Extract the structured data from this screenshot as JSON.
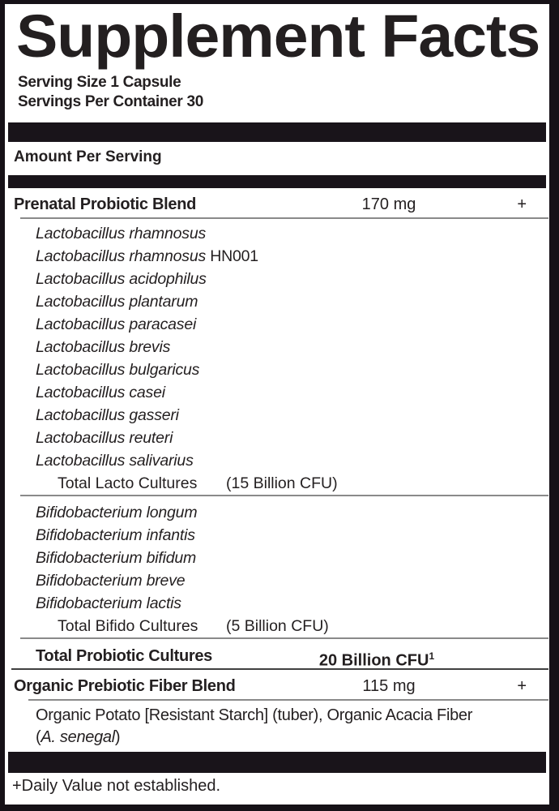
{
  "label": {
    "title": "Supplement Facts",
    "serving_size": "Serving Size 1 Capsule",
    "servings_per_container": "Servings Per Container 30",
    "amount_per_serving_header": "Amount Per Serving",
    "footnote": "+Daily Value not established.",
    "colors": {
      "text": "#231f20",
      "bar": "#19141a",
      "rule_gray": "#8a8a8a",
      "rule_dark": "#404040",
      "background": "#ffffff"
    }
  },
  "probiotic_blend": {
    "name": "Prenatal Probiotic Blend",
    "amount": "170 mg",
    "daily_value": "+",
    "lacto_species": [
      {
        "i": "Lactobacillus rhamnosus",
        "r": ""
      },
      {
        "i": "Lactobacillus rhamnosus",
        "r": " HN001"
      },
      {
        "i": "Lactobacillus acidophilus",
        "r": ""
      },
      {
        "i": "Lactobacillus plantarum",
        "r": ""
      },
      {
        "i": "Lactobacillus paracasei",
        "r": ""
      },
      {
        "i": "Lactobacillus brevis",
        "r": ""
      },
      {
        "i": "Lactobacillus bulgaricus",
        "r": ""
      },
      {
        "i": "Lactobacillus casei",
        "r": ""
      },
      {
        "i": "Lactobacillus gasseri",
        "r": ""
      },
      {
        "i": "Lactobacillus reuteri",
        "r": ""
      },
      {
        "i": "Lactobacillus salivarius",
        "r": ""
      }
    ],
    "lacto_total_label": "Total Lacto Cultures",
    "lacto_total_value": "(15 Billion CFU)",
    "bifido_species": [
      {
        "i": "Bifidobacterium longum",
        "r": ""
      },
      {
        "i": "Bifidobacterium infantis",
        "r": ""
      },
      {
        "i": "Bifidobacterium bifidum",
        "r": ""
      },
      {
        "i": "Bifidobacterium breve",
        "r": ""
      },
      {
        "i": "Bifidobacterium lactis",
        "r": ""
      }
    ],
    "bifido_total_label": "Total Bifido Cultures",
    "bifido_total_value": "(5 Billion CFU)",
    "total_label": "Total Probiotic Cultures",
    "total_value": "20 Billion CFU",
    "total_value_superscript": "1"
  },
  "fiber_blend": {
    "name": "Organic Prebiotic Fiber Blend",
    "amount": "115 mg",
    "daily_value": "+",
    "ingredients_line1": "Organic Potato [Resistant Starch] (tuber), Organic Acacia Fiber",
    "ingredients_line2_open": "(",
    "ingredients_line2_species": "A. senegal",
    "ingredients_line2_close": ")"
  }
}
